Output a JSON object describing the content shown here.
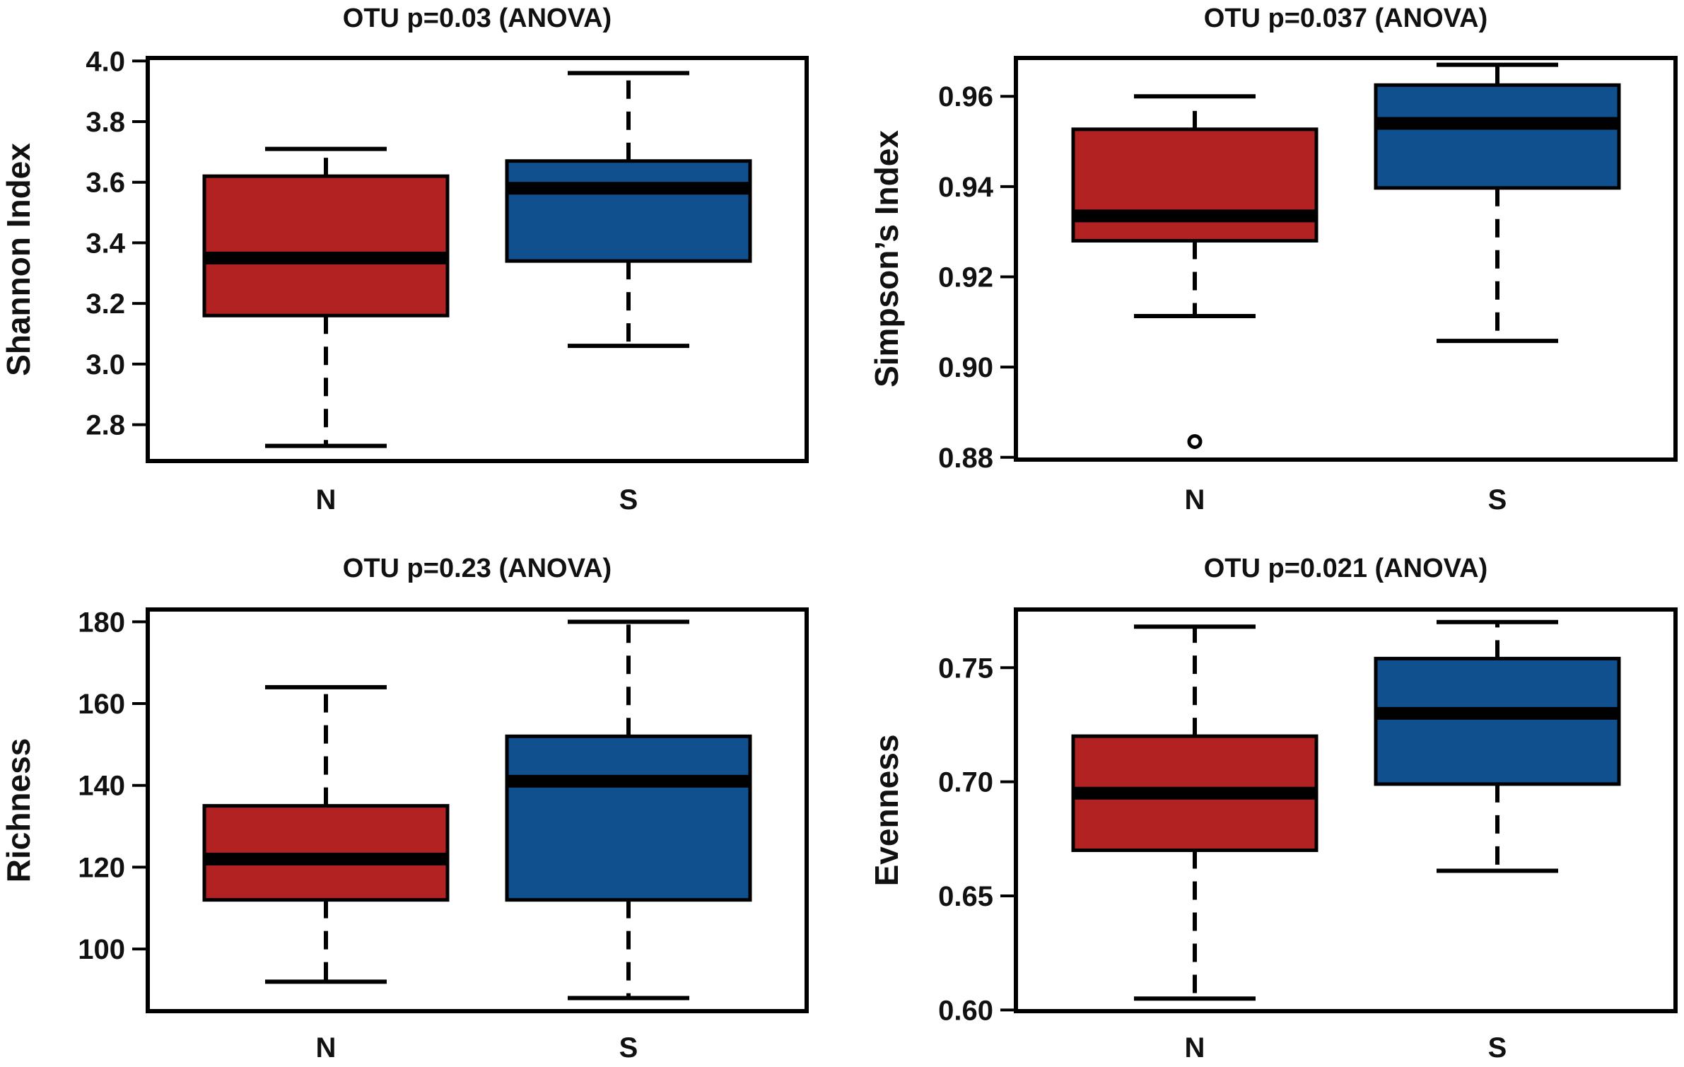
{
  "chart_data": [
    {
      "type": "box",
      "title": "OTU p=0.03 (ANOVA)",
      "ylabel": "Shannon Index",
      "xlabel": "",
      "categories": [
        "N",
        "S"
      ],
      "ylim": [
        2.68,
        4.01
      ],
      "yticks": [
        2.8,
        3.0,
        3.2,
        3.4,
        3.6,
        3.8,
        4.0
      ],
      "ytick_labels": [
        "2.8",
        "3.0",
        "3.2",
        "3.4",
        "3.6",
        "3.8",
        "4.0"
      ],
      "boxes": [
        {
          "group": "N",
          "whisker_low": 2.73,
          "q1": 3.16,
          "median": 3.35,
          "q3": 3.62,
          "whisker_high": 3.71,
          "outliers": []
        },
        {
          "group": "S",
          "whisker_low": 3.06,
          "q1": 3.34,
          "median": 3.58,
          "q3": 3.67,
          "whisker_high": 3.96,
          "outliers": []
        }
      ],
      "colors": {
        "N": "#B22222",
        "S": "#11508F"
      }
    },
    {
      "type": "box",
      "title": "OTU p=0.037 (ANOVA)",
      "ylabel": "Simpson’s Index",
      "xlabel": "",
      "categories": [
        "N",
        "S"
      ],
      "ylim": [
        0.8795,
        0.9685
      ],
      "yticks": [
        0.88,
        0.9,
        0.92,
        0.94,
        0.96
      ],
      "ytick_labels": [
        "0.88",
        "0.90",
        "0.92",
        "0.94",
        "0.96"
      ],
      "boxes": [
        {
          "group": "N",
          "whisker_low": 0.9113,
          "q1": 0.928,
          "median": 0.9335,
          "q3": 0.9527,
          "whisker_high": 0.96,
          "outliers": [
            0.8835
          ]
        },
        {
          "group": "S",
          "whisker_low": 0.9058,
          "q1": 0.9397,
          "median": 0.954,
          "q3": 0.9625,
          "whisker_high": 0.967,
          "outliers": []
        }
      ],
      "colors": {
        "N": "#B22222",
        "S": "#11508F"
      }
    },
    {
      "type": "box",
      "title": "OTU p=0.23 (ANOVA)",
      "ylabel": "Richness",
      "xlabel": "",
      "categories": [
        "N",
        "S"
      ],
      "ylim": [
        84.8,
        183
      ],
      "yticks": [
        100,
        120,
        140,
        160,
        180
      ],
      "ytick_labels": [
        "100",
        "120",
        "140",
        "160",
        "180"
      ],
      "boxes": [
        {
          "group": "N",
          "whisker_low": 92,
          "q1": 112,
          "median": 122,
          "q3": 135,
          "whisker_high": 164,
          "outliers": []
        },
        {
          "group": "S",
          "whisker_low": 88,
          "q1": 112,
          "median": 141,
          "q3": 152,
          "whisker_high": 180,
          "outliers": []
        }
      ],
      "colors": {
        "N": "#B22222",
        "S": "#11508F"
      }
    },
    {
      "type": "box",
      "title": "OTU p=0.021 (ANOVA)",
      "ylabel": "Evenness",
      "xlabel": "",
      "categories": [
        "N",
        "S"
      ],
      "ylim": [
        0.5995,
        0.7755
      ],
      "yticks": [
        0.6,
        0.65,
        0.7,
        0.75
      ],
      "ytick_labels": [
        "0.60",
        "0.65",
        "0.70",
        "0.75"
      ],
      "boxes": [
        {
          "group": "N",
          "whisker_low": 0.605,
          "q1": 0.67,
          "median": 0.695,
          "q3": 0.72,
          "whisker_high": 0.768,
          "outliers": []
        },
        {
          "group": "S",
          "whisker_low": 0.661,
          "q1": 0.699,
          "median": 0.73,
          "q3": 0.754,
          "whisker_high": 0.77,
          "outliers": []
        }
      ],
      "colors": {
        "N": "#B22222",
        "S": "#11508F"
      }
    }
  ]
}
